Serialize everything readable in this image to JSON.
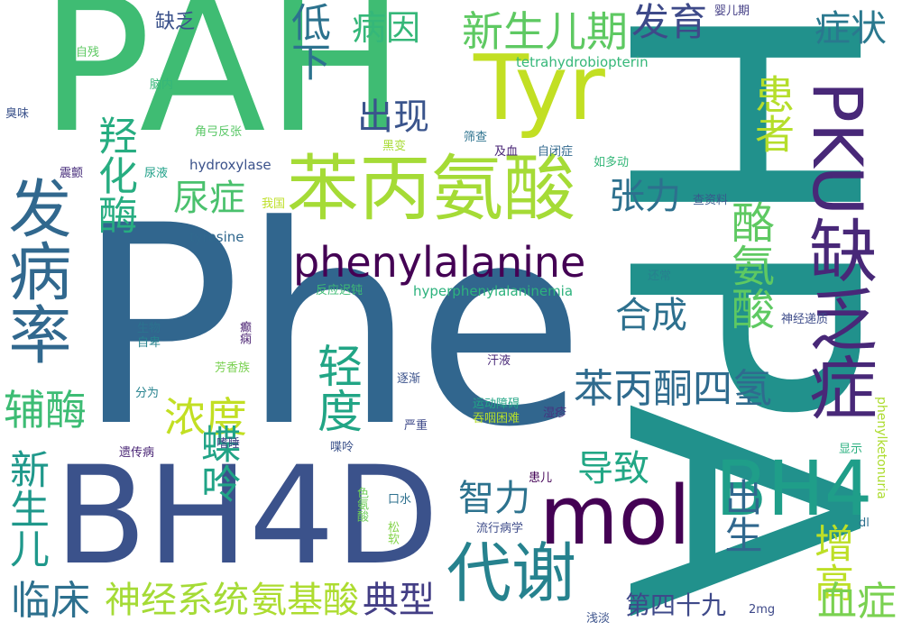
{
  "words": [
    {
      "text": "Phe",
      "color": "#31668e",
      "vertical": false
    },
    {
      "text": "HPA",
      "color": "#21918c",
      "vertical": true
    },
    {
      "text": "PAH",
      "color": "#3fbc73",
      "vertical": false
    },
    {
      "text": "BH4D",
      "color": "#3b528b",
      "vertical": false
    },
    {
      "text": "苯丙氨酸",
      "color": "#a5db36",
      "vertical": false
    },
    {
      "text": "Tyr",
      "color": "#c2df23",
      "vertical": false
    },
    {
      "text": "phenylalanine",
      "color": "#440154",
      "vertical": false
    },
    {
      "text": "PKU缺乏症",
      "color": "#482878",
      "vertical": true
    },
    {
      "text": "mol",
      "color": "#440154",
      "vertical": false
    },
    {
      "text": "BH4",
      "color": "#1f9e89",
      "vertical": false
    },
    {
      "text": "发病率",
      "color": "#31688e",
      "vertical": true
    },
    {
      "text": "代谢",
      "color": "#26828e",
      "vertical": false
    },
    {
      "text": "新生儿期",
      "color": "#5ec962",
      "vertical": false
    },
    {
      "text": "发育",
      "color": "#3e4a89",
      "vertical": false
    },
    {
      "text": "症状",
      "color": "#2a788e",
      "vertical": false
    },
    {
      "text": "病因",
      "color": "#35b779",
      "vertical": false
    },
    {
      "text": "低下",
      "color": "#2c728e",
      "vertical": true
    },
    {
      "text": "缺乏",
      "color": "#3b528b",
      "vertical": false
    },
    {
      "text": "羟化酶",
      "color": "#27ad81",
      "vertical": true
    },
    {
      "text": "患者",
      "color": "#b5de2b",
      "vertical": true
    },
    {
      "text": "出现",
      "color": "#3a548c",
      "vertical": false
    },
    {
      "text": "尿症",
      "color": "#4ac16d",
      "vertical": false
    },
    {
      "text": "张力",
      "color": "#2d708e",
      "vertical": false
    },
    {
      "text": "酪氨酸",
      "color": "#5ec962",
      "vertical": true
    },
    {
      "text": "合成",
      "color": "#2d708e",
      "vertical": false
    },
    {
      "text": "辅酶",
      "color": "#3dbc74",
      "vertical": false
    },
    {
      "text": "浓度",
      "color": "#c2df23",
      "vertical": false
    },
    {
      "text": "轻度",
      "color": "#21a585",
      "vertical": true
    },
    {
      "text": "苯丙酮四氢",
      "color": "#2f6b8e",
      "vertical": false
    },
    {
      "text": "蝶呤",
      "color": "#20a386",
      "vertical": true
    },
    {
      "text": "导致",
      "color": "#22a785",
      "vertical": false
    },
    {
      "text": "新生儿",
      "color": "#1f988b",
      "vertical": true
    },
    {
      "text": "智力",
      "color": "#2c728e",
      "vertical": false
    },
    {
      "text": "出生",
      "color": "#31688e",
      "vertical": true
    },
    {
      "text": "增高",
      "color": "#bddf26",
      "vertical": true
    },
    {
      "text": "临床",
      "color": "#2d708e",
      "vertical": false
    },
    {
      "text": "神经系统",
      "color": "#a5db36",
      "vertical": false
    },
    {
      "text": "氨基酸",
      "color": "#addc30",
      "vertical": false
    },
    {
      "text": "典型",
      "color": "#433e85",
      "vertical": false
    },
    {
      "text": "血症",
      "color": "#7ad151",
      "vertical": false
    },
    {
      "text": "第四十九",
      "color": "#3e4989",
      "vertical": false
    },
    {
      "text": "tetrahydrobiopterin",
      "color": "#35b779",
      "vertical": false
    },
    {
      "text": "hydroxylase",
      "color": "#3b528b",
      "vertical": false
    },
    {
      "text": "tyrosine",
      "color": "#31688e",
      "vertical": false
    },
    {
      "text": "hyperphenylalaninemia",
      "color": "#2db27d",
      "vertical": false
    },
    {
      "text": "phenylketonuria",
      "color": "#addc30",
      "vertical": true
    },
    {
      "text": "婴儿期",
      "color": "#433e85",
      "vertical": false
    },
    {
      "text": "自残",
      "color": "#5ec962",
      "vertical": false
    },
    {
      "text": "脑内",
      "color": "#35b779",
      "vertical": false
    },
    {
      "text": "臭味",
      "color": "#3b528b",
      "vertical": false
    },
    {
      "text": "角弓反张",
      "color": "#58c765",
      "vertical": false
    },
    {
      "text": "筛查",
      "color": "#2c728e",
      "vertical": false
    },
    {
      "text": "黑变",
      "color": "#a8db34",
      "vertical": false
    },
    {
      "text": "及血",
      "color": "#482475",
      "vertical": false
    },
    {
      "text": "自闭症",
      "color": "#31688e",
      "vertical": false
    },
    {
      "text": "震颤",
      "color": "#472d7b",
      "vertical": false
    },
    {
      "text": "尿液",
      "color": "#1fa088",
      "vertical": false
    },
    {
      "text": "如多动",
      "color": "#35b779",
      "vertical": false
    },
    {
      "text": "我国",
      "color": "#bddf26",
      "vertical": false
    },
    {
      "text": "查资料",
      "color": "#38598c",
      "vertical": false
    },
    {
      "text": "还常",
      "color": "#27808e",
      "vertical": false
    },
    {
      "text": "反应迟钝",
      "color": "#3dbc74",
      "vertical": false
    },
    {
      "text": "神经递质",
      "color": "#3e4c8a",
      "vertical": false
    },
    {
      "text": "生物",
      "color": "#2c728e",
      "vertical": false
    },
    {
      "text": "自卑",
      "color": "#26828e",
      "vertical": false
    },
    {
      "text": "癫痫",
      "color": "#481f70",
      "vertical": true
    },
    {
      "text": "汗液",
      "color": "#482878",
      "vertical": false
    },
    {
      "text": "芳香族",
      "color": "#7ad151",
      "vertical": false
    },
    {
      "text": "分为",
      "color": "#26828e",
      "vertical": false
    },
    {
      "text": "逐渐",
      "color": "#3b528b",
      "vertical": false
    },
    {
      "text": "运动障碍",
      "color": "#21a585",
      "vertical": false
    },
    {
      "text": "吞咽困难",
      "color": "#b5de2b",
      "vertical": false
    },
    {
      "text": "湿疹",
      "color": "#46337f",
      "vertical": false
    },
    {
      "text": "严重",
      "color": "#3e4989",
      "vertical": false
    },
    {
      "text": "嗜睡",
      "color": "#414487",
      "vertical": false
    },
    {
      "text": "遗传病",
      "color": "#482475",
      "vertical": false
    },
    {
      "text": "喋呤",
      "color": "#3b528b",
      "vertical": false
    },
    {
      "text": "显示",
      "color": "#29af7f",
      "vertical": false
    },
    {
      "text": "患儿",
      "color": "#450457",
      "vertical": false
    },
    {
      "text": "色氨酸",
      "color": "#6ece58",
      "vertical": true
    },
    {
      "text": "口水",
      "color": "#2d708e",
      "vertical": false
    },
    {
      "text": "松软",
      "color": "#84d44b",
      "vertical": true
    },
    {
      "text": "流行病学",
      "color": "#3e4c8a",
      "vertical": false
    },
    {
      "text": "dl",
      "color": "#2d708e",
      "vertical": false
    },
    {
      "text": "浅淡",
      "color": "#3b528b",
      "vertical": false
    },
    {
      "text": "2mg",
      "color": "#3e4989",
      "vertical": false
    }
  ]
}
